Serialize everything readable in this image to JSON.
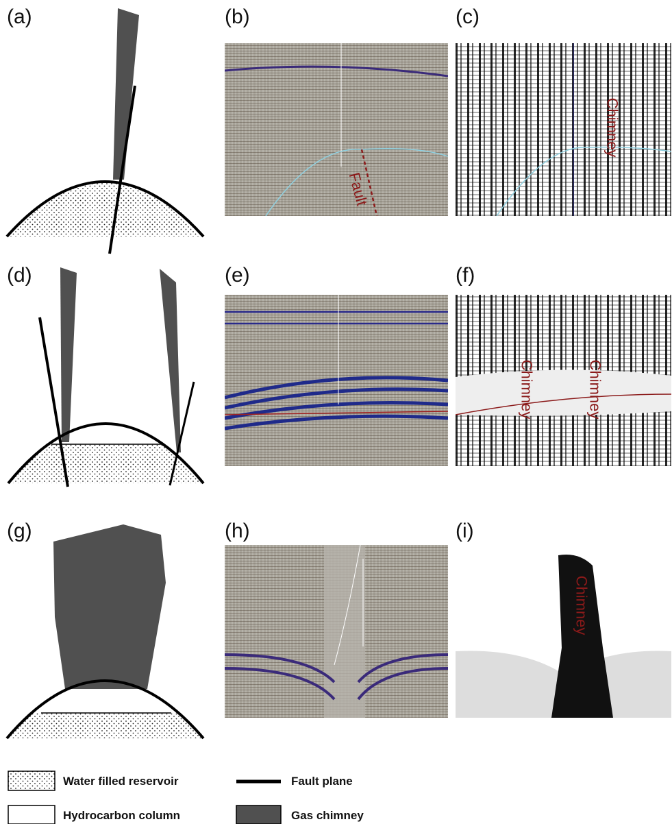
{
  "panels": [
    "(a)",
    "(b)",
    "(c)",
    "(d)",
    "(e)",
    "(f)",
    "(g)",
    "(h)",
    "(i)"
  ],
  "annotations": {
    "b": "Fault",
    "c": "Chimney",
    "f_left": "Chimney",
    "f_right": "Chimney",
    "i": "Chimney"
  },
  "legend": [
    "Water filled reservoir",
    "Fault plane",
    "Hydrocarbon column",
    "Gas chimney"
  ]
}
